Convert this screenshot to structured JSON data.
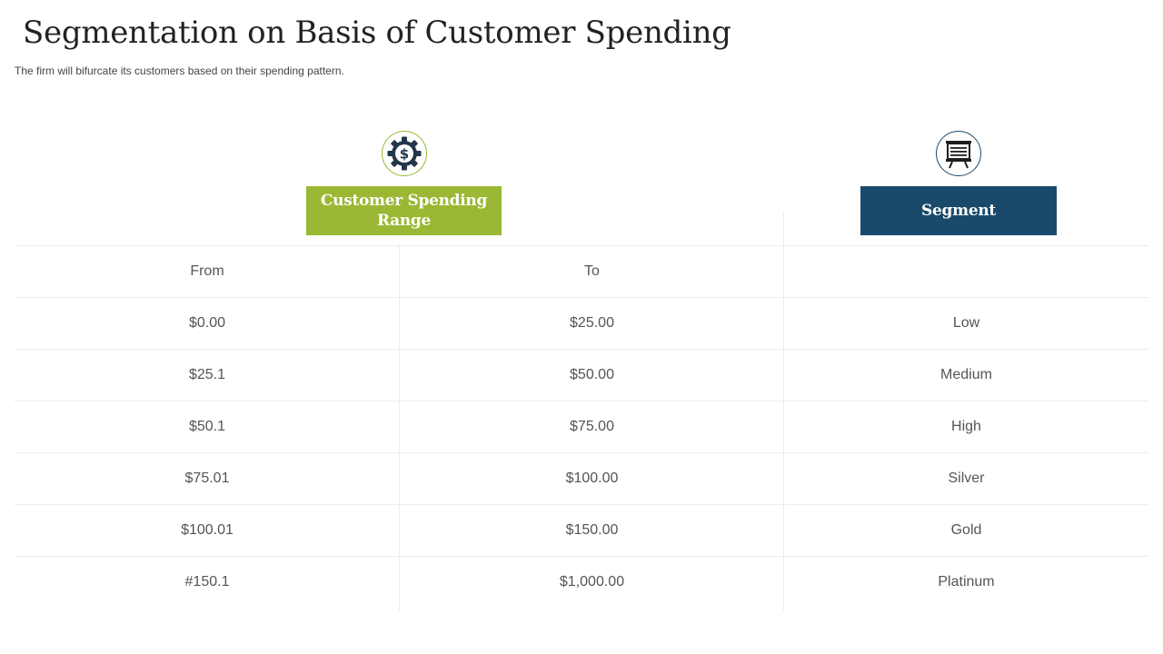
{
  "title": "Segmentation on Basis of Customer Spending",
  "subtitle": "The firm will bifurcate its customers based on their spending pattern.",
  "icons": {
    "left": "dollar-gear-icon",
    "right": "presentation-board-icon"
  },
  "headers": {
    "range": "Customer Spending Range",
    "segment": "Segment"
  },
  "colors": {
    "green": "#9ab833",
    "navy": "#1a4a6b",
    "text": "#555555"
  },
  "table": {
    "subheaders": {
      "from": "From",
      "to": "To",
      "segment": ""
    },
    "rows": [
      {
        "from": "$0.00",
        "to": "$25.00",
        "segment": "Low"
      },
      {
        "from": "$25.1",
        "to": "$50.00",
        "segment": "Medium"
      },
      {
        "from": "$50.1",
        "to": "$75.00",
        "segment": "High"
      },
      {
        "from": "$75.01",
        "to": "$100.00",
        "segment": "Silver"
      },
      {
        "from": "$100.01",
        "to": "$150.00",
        "segment": "Gold"
      },
      {
        "from": "#150.1",
        "to": "$1,000.00",
        "segment": "Platinum"
      }
    ]
  }
}
